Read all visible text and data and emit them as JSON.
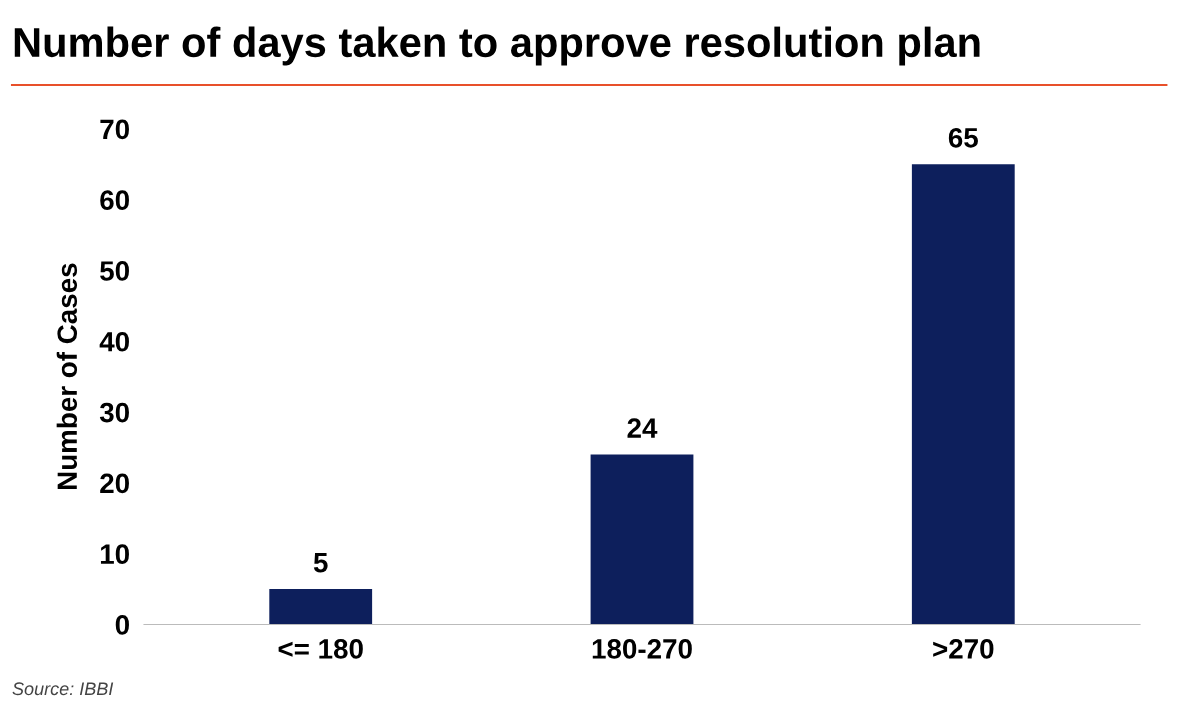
{
  "chart_data": {
    "type": "bar",
    "title": "Number of days taken to approve resolution plan",
    "ylabel": "Number of Cases",
    "categories": [
      "<= 180",
      "180-270",
      ">270"
    ],
    "values": [
      5,
      24,
      65
    ],
    "color": "#0d1f5c",
    "ylim": [
      0,
      70
    ],
    "yticks": [
      0,
      10,
      20,
      30,
      40,
      50,
      60,
      70
    ],
    "grid": false,
    "data_labels": true,
    "annotations": [
      "Source: IBBI"
    ]
  }
}
